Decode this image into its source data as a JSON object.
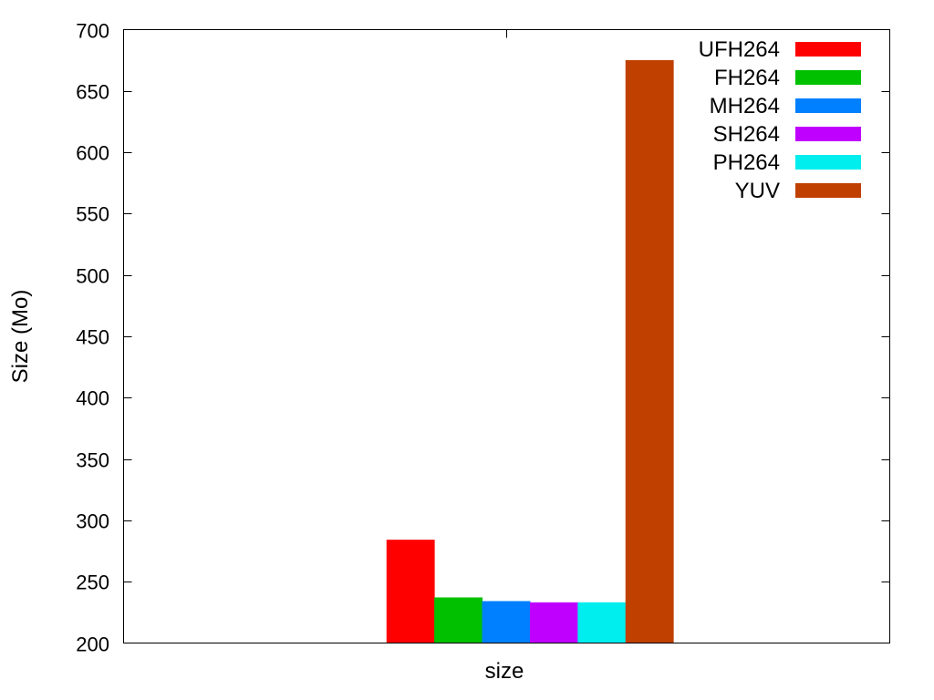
{
  "chart_data": {
    "type": "bar",
    "categories": [
      "size"
    ],
    "series": [
      {
        "name": "UFH264",
        "values": [
          284
        ],
        "color": "#ff0000"
      },
      {
        "name": "FH264",
        "values": [
          237
        ],
        "color": "#00c000"
      },
      {
        "name": "MH264",
        "values": [
          234
        ],
        "color": "#0080ff"
      },
      {
        "name": "SH264",
        "values": [
          233
        ],
        "color": "#c000ff"
      },
      {
        "name": "PH264",
        "values": [
          233
        ],
        "color": "#00eeee"
      },
      {
        "name": "YUV",
        "values": [
          675
        ],
        "color": "#c04000"
      }
    ],
    "title": "",
    "xlabel": "size",
    "ylabel": "Size (Mo)",
    "ylim": [
      200,
      700
    ],
    "yticks": [
      200,
      250,
      300,
      350,
      400,
      450,
      500,
      550,
      600,
      650,
      700
    ],
    "grid": false,
    "legend_position": "top-right"
  }
}
